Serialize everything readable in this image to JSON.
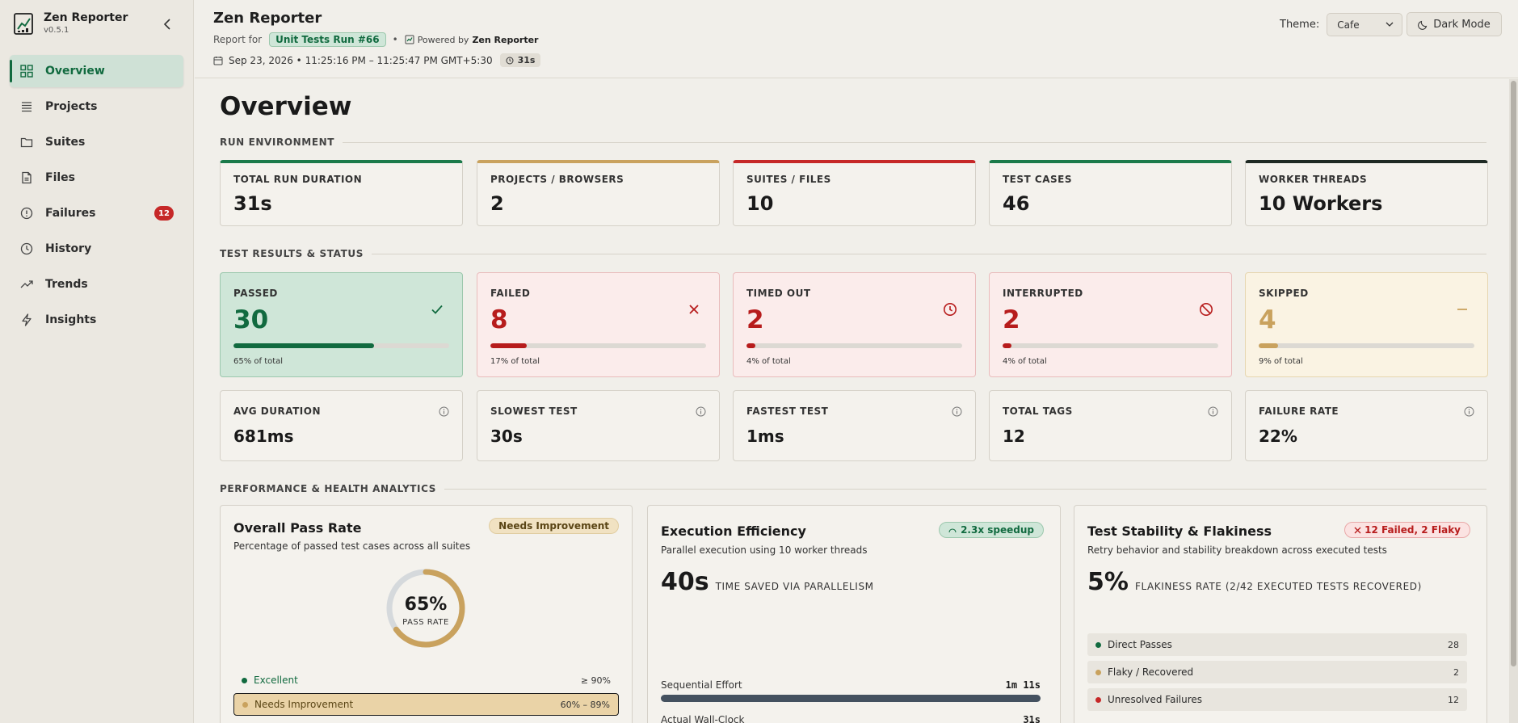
{
  "app": {
    "name": "Zen Reporter",
    "version": "v0.5.1"
  },
  "sidebar": {
    "items": [
      {
        "label": "Overview",
        "icon": "grid-icon",
        "active": true
      },
      {
        "label": "Projects",
        "icon": "list-icon"
      },
      {
        "label": "Suites",
        "icon": "folder-icon"
      },
      {
        "label": "Files",
        "icon": "file-icon"
      },
      {
        "label": "Failures",
        "icon": "alert-circle-icon",
        "badge": "12"
      },
      {
        "label": "History",
        "icon": "clock-icon"
      },
      {
        "label": "Trends",
        "icon": "trending-up-icon"
      },
      {
        "label": "Insights",
        "icon": "bolt-icon"
      }
    ]
  },
  "header": {
    "title": "Zen Reporter",
    "report_for": "Report for",
    "run_name": "Unit Tests Run #66",
    "separator": "•",
    "powered_by": "Powered by",
    "powered_name": "Zen Reporter",
    "date_range": "Sep 23, 2026 • 11:25:16 PM – 11:25:47 PM GMT+5:30",
    "duration": "31s",
    "theme_label": "Theme:",
    "theme_value": "Cafe",
    "dark_mode": "Dark Mode"
  },
  "main": {
    "page_title": "Overview",
    "sections": {
      "env": "RUN ENVIRONMENT",
      "results": "TEST RESULTS & STATUS",
      "perf": "PERFORMANCE & HEALTH ANALYTICS"
    },
    "env_cards": [
      {
        "label": "TOTAL RUN DURATION",
        "value": "31s",
        "accent": "#1b7a4a"
      },
      {
        "label": "PROJECTS / BROWSERS",
        "value": "2",
        "accent": "#c9a25e"
      },
      {
        "label": "SUITES / FILES",
        "value": "10",
        "accent": "#c62828"
      },
      {
        "label": "TEST CASES",
        "value": "46",
        "accent": "#1b7a4a"
      },
      {
        "label": "WORKER THREADS",
        "value": "10 Workers",
        "accent": "#1f2a24"
      }
    ],
    "status_cards": [
      {
        "label": "PASSED",
        "value": "30",
        "percent": 65,
        "note": "65% of total",
        "icon": "check-icon",
        "color": "#116a3f",
        "bg": "#cfe6d8",
        "border": "#9cc8ad"
      },
      {
        "label": "FAILED",
        "value": "8",
        "percent": 17,
        "note": "17% of total",
        "icon": "x-icon",
        "color": "#b71c1c",
        "bg": "#fbeceb",
        "border": "#e9bcbc"
      },
      {
        "label": "TIMED OUT",
        "value": "2",
        "percent": 4,
        "note": "4% of total",
        "icon": "clock-icon",
        "color": "#b71c1c",
        "bg": "#fbeceb",
        "border": "#e9bcbc"
      },
      {
        "label": "INTERRUPTED",
        "value": "2",
        "percent": 4,
        "note": "4% of total",
        "icon": "ban-icon",
        "color": "#b71c1c",
        "bg": "#fbeceb",
        "border": "#e9bcbc"
      },
      {
        "label": "SKIPPED",
        "value": "4",
        "percent": 9,
        "note": "9% of total",
        "icon": "minus-icon",
        "color": "#c9a25e",
        "bg": "#faf3e3",
        "border": "#e6d6b0"
      }
    ],
    "metric_cards": [
      {
        "label": "AVG DURATION",
        "value": "681ms"
      },
      {
        "label": "SLOWEST TEST",
        "value": "30s"
      },
      {
        "label": "FASTEST TEST",
        "value": "1ms"
      },
      {
        "label": "TOTAL TAGS",
        "value": "12"
      },
      {
        "label": "FAILURE RATE",
        "value": "22%"
      }
    ],
    "pass_rate": {
      "title": "Overall Pass Rate",
      "subtitle": "Percentage of passed test cases across all suites",
      "badge": "Needs Improvement",
      "value": "65%",
      "value_percent": 65,
      "label": "PASS RATE",
      "legend": [
        {
          "label": "Excellent",
          "range": "≥ 90%",
          "color": "#116a3f",
          "text_color": "#116a3f"
        },
        {
          "label": "Needs Improvement",
          "range": "60% – 89%",
          "color": "#c9a25e",
          "text_color": "#5a4515",
          "highlight": true
        }
      ]
    },
    "efficiency": {
      "title": "Execution Efficiency",
      "badge": "2.3x speedup",
      "subtitle": "Parallel execution using 10 worker threads",
      "big_value": "40s",
      "big_label": "TIME SAVED VIA PARALLELISM",
      "rows": [
        {
          "label": "Sequential Effort",
          "value": "1m 11s"
        },
        {
          "label": "Actual Wall-Clock",
          "value": "31s"
        }
      ]
    },
    "stability": {
      "title": "Test Stability & Flakiness",
      "badge": "12 Failed, 2 Flaky",
      "subtitle": "Retry behavior and stability breakdown across executed tests",
      "big_value": "5%",
      "big_label": "FLAKINESS RATE (2/42 EXECUTED TESTS RECOVERED)",
      "rows": [
        {
          "label": "Direct Passes",
          "count": "28",
          "color": "#116a3f"
        },
        {
          "label": "Flaky / Recovered",
          "count": "2",
          "color": "#c9a25e"
        },
        {
          "label": "Unresolved Failures",
          "count": "12",
          "color": "#c62828"
        }
      ]
    }
  }
}
